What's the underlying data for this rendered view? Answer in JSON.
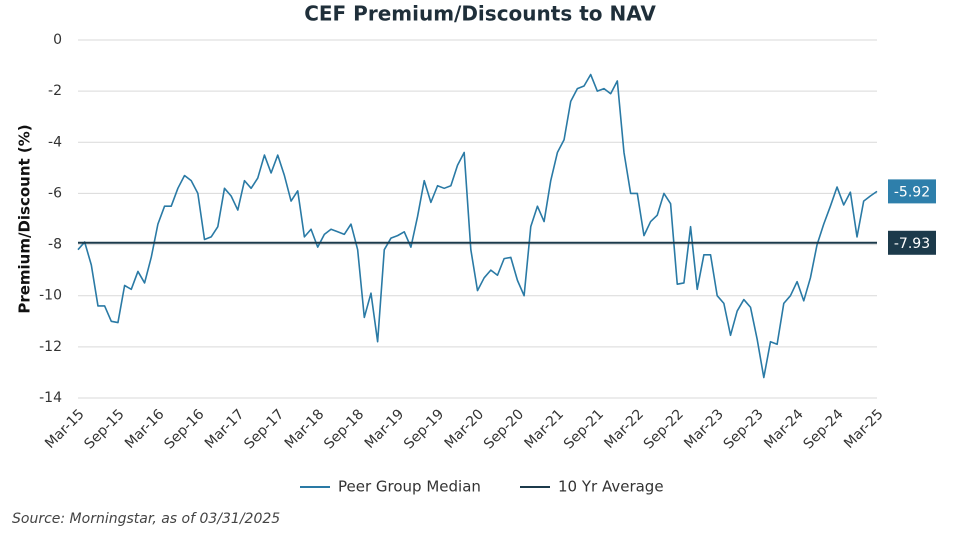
{
  "chart_data": {
    "type": "line",
    "title": "CEF Premium/Discounts to NAV",
    "y_label": "Premium/Discount (%)",
    "source": "Source: Morningstar, as of 03/31/2025",
    "categories": [
      "Mar-15",
      null,
      null,
      null,
      null,
      null,
      "Sep-15",
      null,
      null,
      null,
      null,
      null,
      "Mar-16",
      null,
      null,
      null,
      null,
      null,
      "Sep-16",
      null,
      null,
      null,
      null,
      null,
      "Mar-17",
      null,
      null,
      null,
      null,
      null,
      "Sep-17",
      null,
      null,
      null,
      null,
      null,
      "Mar-18",
      null,
      null,
      null,
      null,
      null,
      "Sep-18",
      null,
      null,
      null,
      null,
      null,
      "Mar-19",
      null,
      null,
      null,
      null,
      null,
      "Sep-19",
      null,
      null,
      null,
      null,
      null,
      "Mar-20",
      null,
      null,
      null,
      null,
      null,
      "Sep-20",
      null,
      null,
      null,
      null,
      null,
      "Mar-21",
      null,
      null,
      null,
      null,
      null,
      "Sep-21",
      null,
      null,
      null,
      null,
      null,
      "Mar-22",
      null,
      null,
      null,
      null,
      null,
      "Sep-22",
      null,
      null,
      null,
      null,
      null,
      "Mar-23",
      null,
      null,
      null,
      null,
      null,
      "Sep-23",
      null,
      null,
      null,
      null,
      null,
      "Mar-24",
      null,
      null,
      null,
      null,
      null,
      "Sep-24",
      null,
      null,
      null,
      null,
      null,
      "Mar-25"
    ],
    "series": [
      {
        "name": "Peer Group Median",
        "color": "#2a7aa5",
        "values": [
          -8.2,
          -7.9,
          -8.8,
          -10.4,
          -10.4,
          -11.0,
          -11.05,
          -9.6,
          -9.75,
          -9.05,
          -9.5,
          -8.5,
          -7.2,
          -6.5,
          -6.5,
          -5.8,
          -5.3,
          -5.5,
          -6.0,
          -7.8,
          -7.7,
          -7.3,
          -5.8,
          -6.1,
          -6.65,
          -5.5,
          -5.8,
          -5.4,
          -4.5,
          -5.2,
          -4.5,
          -5.3,
          -6.3,
          -5.9,
          -7.7,
          -7.4,
          -8.1,
          -7.6,
          -7.4,
          -7.5,
          -7.6,
          -7.2,
          -8.2,
          -10.85,
          -9.9,
          -11.8,
          -8.2,
          -7.75,
          -7.65,
          -7.5,
          -8.1,
          -6.9,
          -5.5,
          -6.35,
          -5.7,
          -5.8,
          -5.7,
          -4.9,
          -4.4,
          -8.2,
          -9.8,
          -9.3,
          -9.0,
          -9.2,
          -8.55,
          -8.5,
          -9.4,
          -10.0,
          -7.3,
          -6.5,
          -7.1,
          -5.5,
          -4.4,
          -3.9,
          -2.4,
          -1.9,
          -1.8,
          -1.35,
          -2.0,
          -1.9,
          -2.1,
          -1.6,
          -4.4,
          -6.0,
          -6.0,
          -7.65,
          -7.1,
          -6.85,
          -6.0,
          -6.4,
          -9.55,
          -9.5,
          -7.3,
          -9.75,
          -8.4,
          -8.4,
          -10.0,
          -10.3,
          -11.55,
          -10.6,
          -10.15,
          -10.45,
          -11.7,
          -13.2,
          -11.8,
          -11.9,
          -10.3,
          -10.0,
          -9.45,
          -10.2,
          -9.3,
          -8.0,
          -7.2,
          -6.5,
          -5.75,
          -6.45,
          -5.95,
          -7.7,
          -6.3,
          -6.1,
          -5.92
        ]
      },
      {
        "name": "10 Yr Average",
        "color": "#1c3a4b",
        "values": [
          -7.93,
          -7.93,
          -7.93,
          -7.93,
          -7.93,
          -7.93,
          -7.93,
          -7.93,
          -7.93,
          -7.93,
          -7.93,
          -7.93,
          -7.93,
          -7.93,
          -7.93,
          -7.93,
          -7.93,
          -7.93,
          -7.93,
          -7.93,
          -7.93,
          -7.93,
          -7.93,
          -7.93,
          -7.93,
          -7.93,
          -7.93,
          -7.93,
          -7.93,
          -7.93,
          -7.93,
          -7.93,
          -7.93,
          -7.93,
          -7.93,
          -7.93,
          -7.93,
          -7.93,
          -7.93,
          -7.93,
          -7.93,
          -7.93,
          -7.93,
          -7.93,
          -7.93,
          -7.93,
          -7.93,
          -7.93,
          -7.93,
          -7.93,
          -7.93,
          -7.93,
          -7.93,
          -7.93,
          -7.93,
          -7.93,
          -7.93,
          -7.93,
          -7.93,
          -7.93,
          -7.93,
          -7.93,
          -7.93,
          -7.93,
          -7.93,
          -7.93,
          -7.93,
          -7.93,
          -7.93,
          -7.93,
          -7.93,
          -7.93,
          -7.93,
          -7.93,
          -7.93,
          -7.93,
          -7.93,
          -7.93,
          -7.93,
          -7.93,
          -7.93,
          -7.93,
          -7.93,
          -7.93,
          -7.93,
          -7.93,
          -7.93,
          -7.93,
          -7.93,
          -7.93,
          -7.93,
          -7.93,
          -7.93,
          -7.93,
          -7.93,
          -7.93,
          -7.93,
          -7.93,
          -7.93,
          -7.93,
          -7.93,
          -7.93,
          -7.93,
          -7.93,
          -7.93,
          -7.93,
          -7.93,
          -7.93,
          -7.93,
          -7.93,
          -7.93,
          -7.93,
          -7.93,
          -7.93,
          -7.93,
          -7.93,
          -7.93,
          -7.93,
          -7.93,
          -7.93,
          -7.93
        ]
      }
    ],
    "ylim": [
      -14,
      0
    ],
    "yticks": [
      0,
      -2,
      -4,
      -6,
      -8,
      -10,
      -12,
      -14
    ],
    "grid": true,
    "legend": "bottom"
  }
}
